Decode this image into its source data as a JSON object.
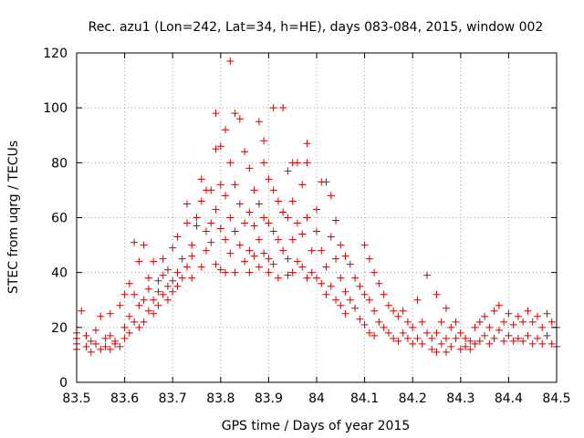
{
  "colors": {
    "points": "#cc0000",
    "axis": "#000000",
    "grid": "#a0a0a0"
  },
  "chart_data": {
    "type": "scatter",
    "title": "Rec. azu1 (Lon=242, Lat=34, h=HE), days 083-084, 2015, window 002",
    "xlabel": "GPS time / Days of year 2015",
    "ylabel": "STEC from uqrg / TECUs",
    "xlim": [
      83.5,
      84.5
    ],
    "ylim": [
      0,
      120
    ],
    "grid": true,
    "marker": "plus",
    "x_ticks": [
      83.5,
      83.6,
      83.7,
      83.8,
      83.9,
      84.0,
      84.1,
      84.2,
      84.3,
      84.4,
      84.5
    ],
    "x_tick_labels": [
      "83.5",
      "83.6",
      "83.7",
      "83.8",
      "83.9",
      "84",
      "84.1",
      "84.2",
      "84.3",
      "84.4",
      "84.5"
    ],
    "y_ticks": [
      0,
      20,
      40,
      60,
      80,
      100,
      120
    ],
    "y_tick_labels": [
      "0",
      "20",
      "40",
      "60",
      "80",
      "100",
      "120"
    ],
    "series": [
      {
        "name": "STEC",
        "points": [
          [
            83.5,
            18
          ],
          [
            83.5,
            16
          ],
          [
            83.5,
            14
          ],
          [
            83.5,
            12
          ],
          [
            83.51,
            26
          ],
          [
            83.52,
            17
          ],
          [
            83.52,
            13
          ],
          [
            83.53,
            15
          ],
          [
            83.53,
            11
          ],
          [
            83.54,
            19
          ],
          [
            83.54,
            14
          ],
          [
            83.55,
            12
          ],
          [
            83.55,
            24
          ],
          [
            83.56,
            16
          ],
          [
            83.56,
            13
          ],
          [
            83.57,
            25
          ],
          [
            83.57,
            17
          ],
          [
            83.57,
            12
          ],
          [
            83.58,
            15
          ],
          [
            83.58,
            14
          ],
          [
            83.59,
            28
          ],
          [
            83.59,
            13
          ],
          [
            83.6,
            32
          ],
          [
            83.6,
            20
          ],
          [
            83.6,
            16
          ],
          [
            83.61,
            36
          ],
          [
            83.61,
            18
          ],
          [
            83.61,
            24
          ],
          [
            83.62,
            22
          ],
          [
            83.62,
            32
          ],
          [
            83.62,
            51
          ],
          [
            83.63,
            44
          ],
          [
            83.63,
            20
          ],
          [
            83.63,
            28
          ],
          [
            83.64,
            30
          ],
          [
            83.64,
            50
          ],
          [
            83.64,
            22
          ],
          [
            83.65,
            34
          ],
          [
            83.65,
            38
          ],
          [
            83.65,
            26
          ],
          [
            83.66,
            44
          ],
          [
            83.66,
            30
          ],
          [
            83.66,
            25
          ],
          [
            83.67,
            37
          ],
          [
            83.67,
            33
          ],
          [
            83.67,
            28
          ],
          [
            83.68,
            39
          ],
          [
            83.68,
            32
          ],
          [
            83.68,
            45
          ],
          [
            83.69,
            35
          ],
          [
            83.69,
            30
          ],
          [
            83.69,
            41
          ],
          [
            83.7,
            37
          ],
          [
            83.7,
            33
          ],
          [
            83.7,
            49
          ],
          [
            83.71,
            40
          ],
          [
            83.71,
            35
          ],
          [
            83.71,
            53
          ],
          [
            83.72,
            45
          ],
          [
            83.72,
            38
          ],
          [
            83.73,
            65
          ],
          [
            83.73,
            58
          ],
          [
            83.73,
            42
          ],
          [
            83.74,
            50
          ],
          [
            83.74,
            46
          ],
          [
            83.74,
            38
          ],
          [
            83.75,
            57
          ],
          [
            83.75,
            60
          ],
          [
            83.76,
            74
          ],
          [
            83.76,
            66
          ],
          [
            83.76,
            42
          ],
          [
            83.77,
            70
          ],
          [
            83.77,
            55
          ],
          [
            83.77,
            48
          ],
          [
            83.78,
            70
          ],
          [
            83.78,
            58
          ],
          [
            83.78,
            51
          ],
          [
            83.79,
            85
          ],
          [
            83.79,
            63
          ],
          [
            83.79,
            43
          ],
          [
            83.79,
            98
          ],
          [
            83.8,
            86
          ],
          [
            83.8,
            72
          ],
          [
            83.8,
            56
          ],
          [
            83.8,
            41
          ],
          [
            83.81,
            92
          ],
          [
            83.81,
            68
          ],
          [
            83.81,
            52
          ],
          [
            83.81,
            40
          ],
          [
            83.82,
            117
          ],
          [
            83.82,
            80
          ],
          [
            83.82,
            60
          ],
          [
            83.82,
            47
          ],
          [
            83.83,
            98
          ],
          [
            83.83,
            72
          ],
          [
            83.83,
            55
          ],
          [
            83.83,
            40
          ],
          [
            83.84,
            96
          ],
          [
            83.84,
            65
          ],
          [
            83.84,
            50
          ],
          [
            83.85,
            84
          ],
          [
            83.85,
            58
          ],
          [
            83.85,
            44
          ],
          [
            83.86,
            78
          ],
          [
            83.86,
            62
          ],
          [
            83.86,
            48
          ],
          [
            83.86,
            40
          ],
          [
            83.87,
            70
          ],
          [
            83.87,
            57
          ],
          [
            83.87,
            46
          ],
          [
            83.88,
            95
          ],
          [
            83.88,
            65
          ],
          [
            83.88,
            52
          ],
          [
            83.88,
            42
          ],
          [
            83.89,
            88
          ],
          [
            83.89,
            80
          ],
          [
            83.89,
            60
          ],
          [
            83.89,
            47
          ],
          [
            83.9,
            74
          ],
          [
            83.9,
            58
          ],
          [
            83.9,
            45
          ],
          [
            83.9,
            40
          ],
          [
            83.91,
            100
          ],
          [
            83.91,
            70
          ],
          [
            83.91,
            55
          ],
          [
            83.91,
            43
          ],
          [
            83.92,
            66
          ],
          [
            83.92,
            52
          ],
          [
            83.92,
            38
          ],
          [
            83.93,
            100
          ],
          [
            83.93,
            62
          ],
          [
            83.93,
            48
          ],
          [
            83.94,
            77
          ],
          [
            83.94,
            60
          ],
          [
            83.94,
            45
          ],
          [
            83.94,
            39
          ],
          [
            83.95,
            80
          ],
          [
            83.95,
            66
          ],
          [
            83.95,
            52
          ],
          [
            83.95,
            40
          ],
          [
            83.96,
            80
          ],
          [
            83.96,
            58
          ],
          [
            83.96,
            44
          ],
          [
            83.97,
            72
          ],
          [
            83.97,
            54
          ],
          [
            83.97,
            42
          ],
          [
            83.98,
            87
          ],
          [
            83.98,
            80
          ],
          [
            83.98,
            60
          ],
          [
            83.98,
            38
          ],
          [
            83.99,
            48
          ],
          [
            83.99,
            40
          ],
          [
            84.0,
            63
          ],
          [
            84.0,
            55
          ],
          [
            84.0,
            38
          ],
          [
            84.01,
            73
          ],
          [
            84.01,
            48
          ],
          [
            84.01,
            36
          ],
          [
            84.02,
            73
          ],
          [
            84.02,
            42
          ],
          [
            84.02,
            32
          ],
          [
            84.03,
            68
          ],
          [
            84.03,
            53
          ],
          [
            84.03,
            35
          ],
          [
            84.04,
            59
          ],
          [
            84.04,
            45
          ],
          [
            84.04,
            30
          ],
          [
            84.05,
            50
          ],
          [
            84.05,
            38
          ],
          [
            84.05,
            28
          ],
          [
            84.06,
            46
          ],
          [
            84.06,
            33
          ],
          [
            84.06,
            25
          ],
          [
            84.07,
            43
          ],
          [
            84.07,
            30
          ],
          [
            84.08,
            38
          ],
          [
            84.08,
            27
          ],
          [
            84.09,
            35
          ],
          [
            84.09,
            23
          ],
          [
            84.1,
            50
          ],
          [
            84.1,
            32
          ],
          [
            84.1,
            21
          ],
          [
            84.11,
            45
          ],
          [
            84.11,
            30
          ],
          [
            84.11,
            18
          ],
          [
            84.12,
            40
          ],
          [
            84.12,
            26
          ],
          [
            84.12,
            17
          ],
          [
            84.13,
            36
          ],
          [
            84.13,
            22
          ],
          [
            84.14,
            32
          ],
          [
            84.14,
            20
          ],
          [
            84.15,
            28
          ],
          [
            84.15,
            18
          ],
          [
            84.16,
            26
          ],
          [
            84.16,
            16
          ],
          [
            84.17,
            24
          ],
          [
            84.17,
            15
          ],
          [
            84.18,
            26
          ],
          [
            84.18,
            18
          ],
          [
            84.19,
            22
          ],
          [
            84.19,
            16
          ],
          [
            84.2,
            20
          ],
          [
            84.2,
            14
          ],
          [
            84.21,
            30
          ],
          [
            84.21,
            16
          ],
          [
            84.22,
            22
          ],
          [
            84.22,
            14
          ],
          [
            84.23,
            39
          ],
          [
            84.23,
            18
          ],
          [
            84.24,
            16
          ],
          [
            84.24,
            12
          ],
          [
            84.25,
            32
          ],
          [
            84.25,
            18
          ],
          [
            84.25,
            11
          ],
          [
            84.26,
            22
          ],
          [
            84.26,
            14
          ],
          [
            84.27,
            27
          ],
          [
            84.27,
            16
          ],
          [
            84.27,
            11
          ],
          [
            84.28,
            20
          ],
          [
            84.28,
            13
          ],
          [
            84.29,
            22
          ],
          [
            84.29,
            16
          ],
          [
            84.3,
            18
          ],
          [
            84.3,
            12
          ],
          [
            84.31,
            16
          ],
          [
            84.31,
            13
          ],
          [
            84.32,
            15
          ],
          [
            84.32,
            12
          ],
          [
            84.33,
            20
          ],
          [
            84.33,
            14
          ],
          [
            84.34,
            22
          ],
          [
            84.34,
            15
          ],
          [
            84.35,
            24
          ],
          [
            84.35,
            17
          ],
          [
            84.36,
            20
          ],
          [
            84.36,
            14
          ],
          [
            84.37,
            26
          ],
          [
            84.37,
            16
          ],
          [
            84.38,
            28
          ],
          [
            84.38,
            19
          ],
          [
            84.39,
            22
          ],
          [
            84.39,
            15
          ],
          [
            84.4,
            25
          ],
          [
            84.4,
            17
          ],
          [
            84.41,
            21
          ],
          [
            84.41,
            15
          ],
          [
            84.42,
            24
          ],
          [
            84.42,
            16
          ],
          [
            84.43,
            22
          ],
          [
            84.43,
            15
          ],
          [
            84.44,
            26
          ],
          [
            84.44,
            17
          ],
          [
            84.45,
            22
          ],
          [
            84.45,
            14
          ],
          [
            84.46,
            24
          ],
          [
            84.46,
            16
          ],
          [
            84.47,
            20
          ],
          [
            84.47,
            14
          ],
          [
            84.48,
            25
          ],
          [
            84.48,
            17
          ],
          [
            84.49,
            22
          ],
          [
            84.49,
            14
          ],
          [
            84.5,
            20
          ],
          [
            84.5,
            13
          ]
        ]
      }
    ]
  }
}
